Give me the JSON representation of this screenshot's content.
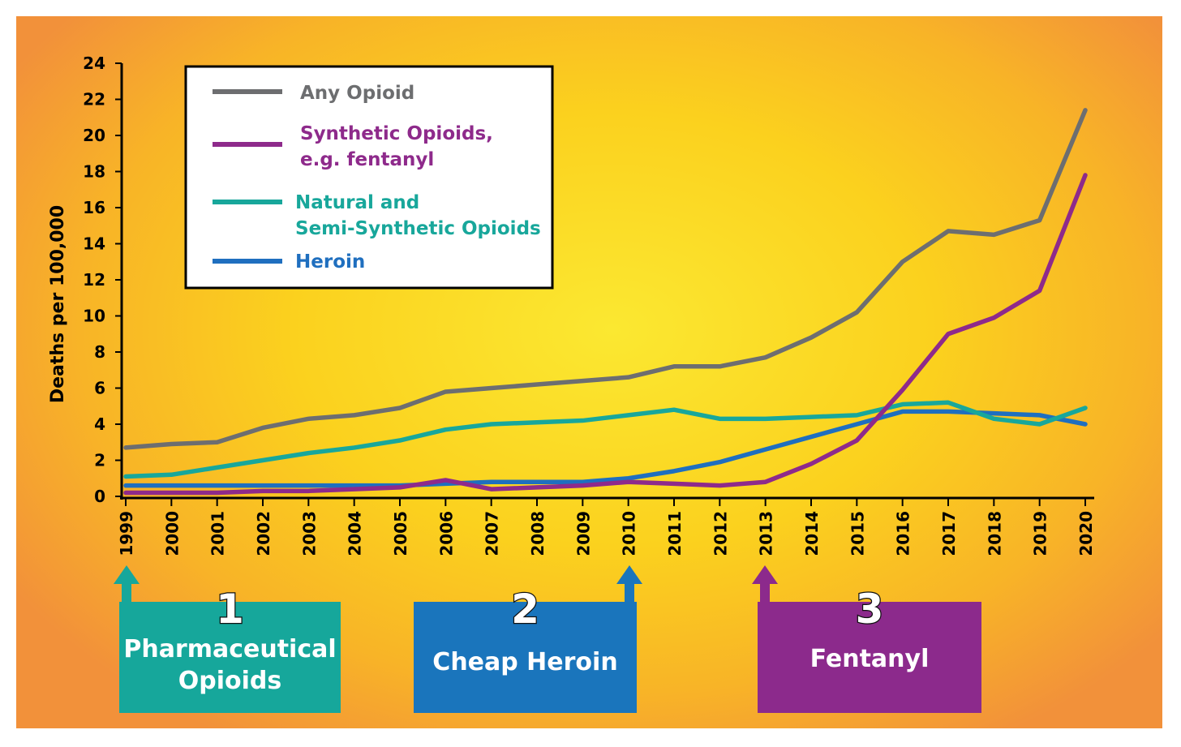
{
  "chart_data": {
    "type": "line",
    "ylabel": "Deaths per 100,000",
    "xlabel": "",
    "ylim": [
      0,
      24
    ],
    "yticks": [
      0,
      2,
      4,
      6,
      8,
      10,
      12,
      14,
      16,
      18,
      20,
      22,
      24
    ],
    "x": [
      1999,
      2000,
      2001,
      2002,
      2003,
      2004,
      2005,
      2006,
      2007,
      2008,
      2009,
      2010,
      2011,
      2012,
      2013,
      2014,
      2015,
      2016,
      2017,
      2018,
      2019,
      2020
    ],
    "legend_position": "top-left",
    "grid": false,
    "series": [
      {
        "name": "Any Opioid",
        "color": "#6d6e70",
        "values": [
          2.7,
          2.9,
          3.0,
          3.8,
          4.3,
          4.5,
          4.9,
          5.8,
          6.0,
          6.2,
          6.4,
          6.6,
          7.2,
          7.2,
          7.7,
          8.8,
          10.2,
          13.0,
          14.7,
          14.5,
          15.3,
          21.4
        ]
      },
      {
        "name": "Synthetic Opioids, e.g. fentanyl",
        "color": "#8e2a8b",
        "values": [
          0.2,
          0.2,
          0.2,
          0.3,
          0.3,
          0.4,
          0.5,
          0.9,
          0.4,
          0.5,
          0.6,
          0.8,
          0.7,
          0.6,
          0.8,
          1.8,
          3.1,
          5.9,
          9.0,
          9.9,
          11.4,
          17.8
        ]
      },
      {
        "name": "Natural and Semi-Synthetic Opioids",
        "color": "#18a79b",
        "values": [
          1.1,
          1.2,
          1.6,
          2.0,
          2.4,
          2.7,
          3.1,
          3.7,
          4.0,
          4.1,
          4.2,
          4.5,
          4.8,
          4.3,
          4.3,
          4.4,
          4.5,
          5.1,
          5.2,
          4.3,
          4.0,
          4.9
        ]
      },
      {
        "name": "Heroin",
        "color": "#1f6fbf",
        "values": [
          0.6,
          0.6,
          0.6,
          0.6,
          0.6,
          0.6,
          0.6,
          0.7,
          0.8,
          0.8,
          0.8,
          1.0,
          1.4,
          1.9,
          2.6,
          3.3,
          4.0,
          4.7,
          4.7,
          4.6,
          4.5,
          4.0
        ]
      }
    ],
    "legend": [
      {
        "label_lines": [
          "Any Opioid"
        ],
        "color": "#6d6e70"
      },
      {
        "label_lines": [
          "Synthetic Opioids,",
          "e.g. fentanyl"
        ],
        "color": "#8e2a8b"
      },
      {
        "label_lines": [
          "Natural and",
          "Semi-Synthetic Opioids"
        ],
        "color": "#18a79b"
      },
      {
        "label_lines": [
          "Heroin"
        ],
        "color": "#1f6fbf"
      }
    ]
  },
  "callouts": [
    {
      "number": "1",
      "label_lines": [
        "Pharmaceutical",
        "Opioids"
      ],
      "year": 1999,
      "color": "#16a79b"
    },
    {
      "number": "2",
      "label_lines": [
        "Cheap Heroin"
      ],
      "year": 2010,
      "color": "#1a75bc"
    },
    {
      "number": "3",
      "label_lines": [
        "Fentanyl"
      ],
      "year": 2013,
      "color": "#8c2a8c"
    }
  ]
}
